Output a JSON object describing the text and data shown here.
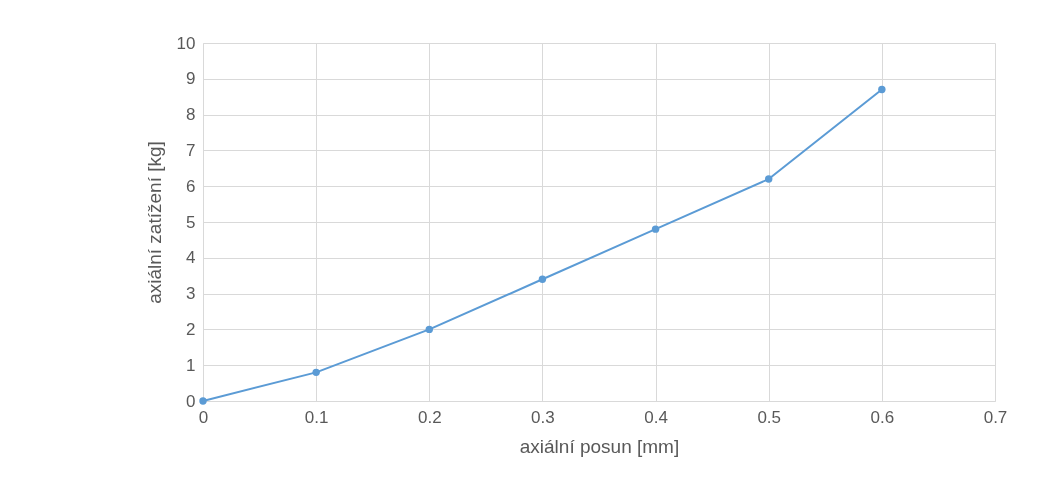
{
  "chart_data": {
    "type": "line",
    "xlabel": "axiální posun [mm]",
    "ylabel": "axiální zatížení [kg]",
    "x": [
      0,
      0.1,
      0.2,
      0.3,
      0.4,
      0.5,
      0.6
    ],
    "series": [
      {
        "color": "#5b9bd5",
        "values": [
          0,
          0.8,
          2.0,
          3.4,
          4.8,
          6.2,
          8.7
        ]
      }
    ],
    "xlim": [
      0,
      0.7
    ],
    "xticks": [
      0,
      0.1,
      0.2,
      0.3,
      0.4,
      0.5,
      0.6,
      0.7
    ],
    "ylim": [
      0,
      10
    ],
    "yticks": [
      0,
      1,
      2,
      3,
      4,
      5,
      6,
      7,
      8,
      9,
      10
    ],
    "grid": true,
    "marker": "circle",
    "line_style": "solid",
    "legend": false
  }
}
